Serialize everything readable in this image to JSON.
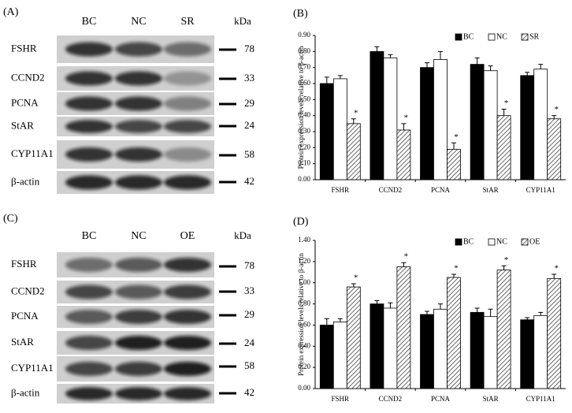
{
  "panels": [
    {
      "label": "(A)",
      "lanes": [
        "BC",
        "NC",
        "SR"
      ],
      "unit": "kDa",
      "rows": [
        {
          "name": "FSHR",
          "kda": 78
        },
        {
          "name": "CCND2",
          "kda": 33
        },
        {
          "name": "PCNA",
          "kda": 29
        },
        {
          "name": "StAR",
          "kda": 24
        },
        {
          "name": "CYP11A1",
          "kda": 58
        },
        {
          "name": "β-actin",
          "kda": 42
        }
      ]
    },
    {
      "label": "(C)",
      "lanes": [
        "BC",
        "NC",
        "OE"
      ],
      "unit": "kDa",
      "rows": [
        {
          "name": "FSHR",
          "kda": 78
        },
        {
          "name": "CCND2",
          "kda": 33
        },
        {
          "name": "PCNA",
          "kda": 29
        },
        {
          "name": "StAR",
          "kda": 24
        },
        {
          "name": "CYP11A1",
          "kda": 58
        },
        {
          "name": "β-actin",
          "kda": 42
        }
      ]
    }
  ],
  "chart_data": [
    {
      "type": "bar",
      "label": "(B)",
      "y_label": "Protein expression levels relative  to β-actin",
      "categories": [
        "FSHR",
        "CCND2",
        "PCNA",
        "StAR",
        "CYP11A1"
      ],
      "series": [
        {
          "name": "BC",
          "color": "#000000",
          "values": [
            0.6,
            0.8,
            0.7,
            0.72,
            0.65
          ],
          "errors": [
            0.04,
            0.03,
            0.03,
            0.04,
            0.02
          ]
        },
        {
          "name": "NC",
          "color": "#ffffff",
          "values": [
            0.63,
            0.76,
            0.75,
            0.68,
            0.69
          ],
          "errors": [
            0.02,
            0.02,
            0.05,
            0.03,
            0.03
          ]
        },
        {
          "name": "SR",
          "color": "#444444",
          "hatch": true,
          "values": [
            0.35,
            0.31,
            0.19,
            0.4,
            0.38
          ],
          "errors": [
            0.03,
            0.04,
            0.04,
            0.04,
            0.02
          ],
          "annotations": [
            "*",
            "*",
            "*",
            "*",
            "*"
          ]
        }
      ],
      "ylim": [
        0,
        0.9
      ],
      "yticks": [
        {
          "value": 0,
          "label": "0.00"
        },
        {
          "value": 0.1,
          "label": "0.10"
        },
        {
          "value": 0.2,
          "label": "0.20"
        },
        {
          "value": 0.3,
          "label": "0.30"
        },
        {
          "value": 0.4,
          "label": "0.40"
        },
        {
          "value": 0.5,
          "label": "0.50"
        },
        {
          "value": 0.6,
          "label": "0.60"
        },
        {
          "value": 0.7,
          "label": "0.70"
        },
        {
          "value": 0.8,
          "label": "0.80"
        },
        {
          "value": 0.9,
          "label": "0.90"
        }
      ],
      "legend": "top-right"
    },
    {
      "type": "bar",
      "label": "(D)",
      "y_label": "Protein expression levels relative  to β-actin",
      "categories": [
        "FSHR",
        "CCND2",
        "PCNA",
        "StAR",
        "CYP11A1"
      ],
      "series": [
        {
          "name": "BC",
          "color": "#000000",
          "values": [
            0.6,
            0.8,
            0.7,
            0.72,
            0.65
          ],
          "errors": [
            0.06,
            0.03,
            0.03,
            0.04,
            0.02
          ]
        },
        {
          "name": "NC",
          "color": "#ffffff",
          "values": [
            0.63,
            0.76,
            0.75,
            0.68,
            0.69
          ],
          "errors": [
            0.03,
            0.05,
            0.05,
            0.07,
            0.03
          ]
        },
        {
          "name": "OE",
          "color": "#444444",
          "hatch": true,
          "values": [
            0.96,
            1.15,
            1.05,
            1.12,
            1.04
          ],
          "errors": [
            0.03,
            0.04,
            0.03,
            0.04,
            0.04
          ],
          "annotations": [
            "*",
            "*",
            "*",
            "*",
            "*"
          ]
        }
      ],
      "ylim": [
        0,
        1.4
      ],
      "yticks": [
        {
          "value": 0,
          "label": "0.00"
        },
        {
          "value": 0.2,
          "label": "0.20"
        },
        {
          "value": 0.4,
          "label": "0.40"
        },
        {
          "value": 0.6,
          "label": "0.60"
        },
        {
          "value": 0.8,
          "label": "0.80"
        },
        {
          "value": 1.0,
          "label": "1.00"
        },
        {
          "value": 1.2,
          "label": "1.20"
        },
        {
          "value": 1.4,
          "label": "1.40"
        }
      ],
      "legend": "top-right"
    }
  ]
}
